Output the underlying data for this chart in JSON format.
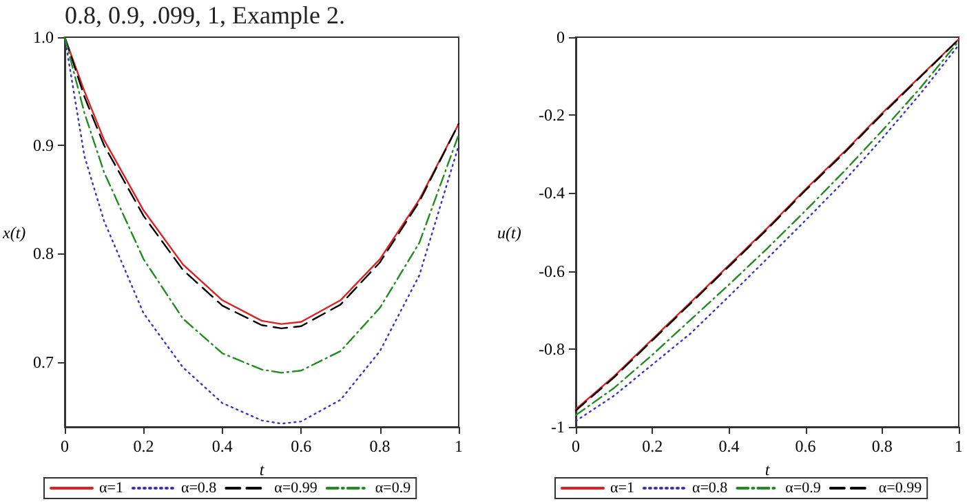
{
  "chart_data": [
    {
      "type": "line",
      "annotations": [
        "0.8, 0.9, .099, 1, Example 2."
      ],
      "xlabel": "t",
      "ylabel": "x(t)",
      "xlim": [
        0,
        1
      ],
      "xticks": [
        0,
        0.2,
        0.4,
        0.6,
        0.8,
        1
      ],
      "ylim": [
        0.64,
        1.0
      ],
      "yticks": [
        0.7,
        0.8,
        0.9,
        {
          "value": 1.0,
          "label": "1.0"
        }
      ],
      "grid": false,
      "legend": "bottom",
      "marker": "none",
      "x": [
        0,
        0.05,
        0.1,
        0.2,
        0.3,
        0.4,
        0.5,
        0.55,
        0.6,
        0.7,
        0.8,
        0.9,
        1
      ],
      "series": [
        {
          "name": "α=1",
          "color": "#e02020",
          "line_style": "solid",
          "values": [
            1.0,
            0.95,
            0.905,
            0.84,
            0.79,
            0.757,
            0.738,
            0.735,
            0.737,
            0.757,
            0.795,
            0.85,
            0.92
          ]
        },
        {
          "name": "α=0.8",
          "color": "#3333cc",
          "line_style": "dotted",
          "values": [
            1.0,
            0.89,
            0.83,
            0.745,
            0.695,
            0.662,
            0.646,
            0.643,
            0.645,
            0.665,
            0.71,
            0.78,
            0.9
          ]
        },
        {
          "name": "α=0.99",
          "color": "#000000",
          "line_style": "dashed",
          "values": [
            1.0,
            0.945,
            0.9,
            0.835,
            0.785,
            0.752,
            0.734,
            0.731,
            0.733,
            0.753,
            0.792,
            0.848,
            0.92
          ]
        },
        {
          "name": "α=0.9",
          "color": "#228b22",
          "line_style": "dashdot",
          "values": [
            1.0,
            0.93,
            0.875,
            0.795,
            0.74,
            0.708,
            0.693,
            0.69,
            0.692,
            0.71,
            0.75,
            0.81,
            0.91
          ]
        }
      ]
    },
    {
      "type": "line",
      "xlabel": "t",
      "ylabel": "u(t)",
      "xlim": [
        0,
        1
      ],
      "xticks": [
        0,
        0.2,
        0.4,
        0.6,
        0.8,
        1
      ],
      "ylim": [
        -1,
        0
      ],
      "yticks": [
        -1,
        -0.8,
        -0.6,
        -0.4,
        -0.2,
        0
      ],
      "grid": false,
      "legend": "bottom",
      "marker": "none",
      "x": [
        0,
        0.1,
        0.2,
        0.3,
        0.4,
        0.5,
        0.6,
        0.7,
        0.8,
        0.9,
        1
      ],
      "series": [
        {
          "name": "α=1",
          "color": "#e02020",
          "line_style": "solid",
          "values": [
            -0.955,
            -0.87,
            -0.775,
            -0.68,
            -0.585,
            -0.49,
            -0.39,
            -0.295,
            -0.195,
            -0.1,
            -0.005
          ]
        },
        {
          "name": "α=0.8",
          "color": "#3333cc",
          "line_style": "dotted",
          "values": [
            -0.985,
            -0.92,
            -0.84,
            -0.76,
            -0.665,
            -0.568,
            -0.47,
            -0.37,
            -0.26,
            -0.145,
            -0.02
          ]
        },
        {
          "name": "α=0.9",
          "color": "#228b22",
          "line_style": "dashdot",
          "values": [
            -0.97,
            -0.9,
            -0.815,
            -0.725,
            -0.635,
            -0.542,
            -0.445,
            -0.345,
            -0.24,
            -0.13,
            -0.01
          ]
        },
        {
          "name": "α=0.99",
          "color": "#000000",
          "line_style": "dashed",
          "values": [
            -0.958,
            -0.873,
            -0.778,
            -0.683,
            -0.588,
            -0.493,
            -0.393,
            -0.298,
            -0.198,
            -0.102,
            -0.006
          ]
        }
      ]
    }
  ]
}
